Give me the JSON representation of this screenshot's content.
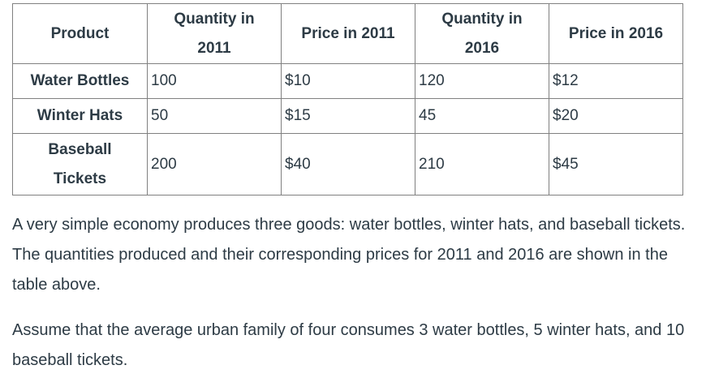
{
  "table": {
    "headers": [
      "Product",
      "Quantity in 2011",
      "Price in 2011",
      "Quantity in 2016",
      "Price in 2016"
    ],
    "rows": [
      [
        "Water Bottles",
        "100",
        "$10",
        "120",
        "$12"
      ],
      [
        "Winter Hats",
        "50",
        "$15",
        "45",
        "$20"
      ],
      [
        "Baseball Tickets",
        "200",
        "$40",
        "210",
        "$45"
      ]
    ]
  },
  "paragraphs": [
    "A very simple economy produces three goods: water bottles, winter hats, and baseball tickets. The quantities produced and their corresponding prices for 2011 and 2016 are shown in the table above.",
    "Assume that the average urban family of four consumes 3 water bottles, 5 winter hats, and 10 baseball tickets."
  ]
}
